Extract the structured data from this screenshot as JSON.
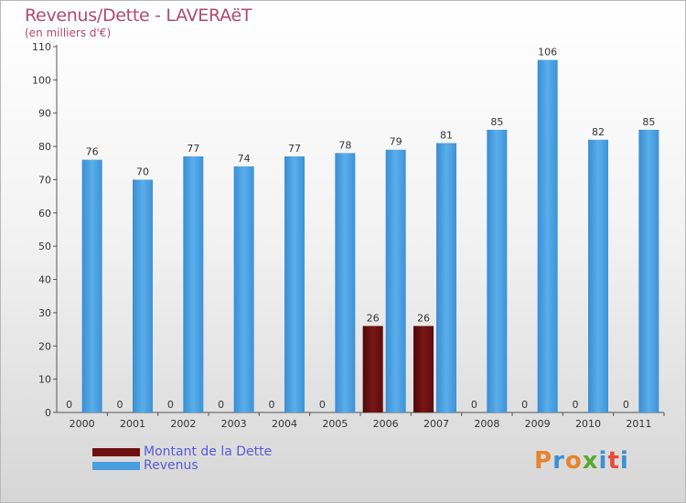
{
  "header": {
    "title": "Revenus/Dette - LAVERAëT",
    "subtitle": "(en milliers d'€)"
  },
  "legend": {
    "items": [
      {
        "label": "Montant de la Dette",
        "color": "#6e1010"
      },
      {
        "label": "Revenus",
        "color": "#4a9ee0"
      }
    ]
  },
  "logo": {
    "text": "Proxiti",
    "colors": [
      "#e8832a",
      "#3c8fd6",
      "#e8832a",
      "#5aa832",
      "#3c8fd6",
      "#e84a3a",
      "#3c8fd6"
    ]
  },
  "chart_data": {
    "type": "bar",
    "title": "Revenus/Dette - LAVERAëT",
    "subtitle": "(en milliers d'€)",
    "categories": [
      "2000",
      "2001",
      "2002",
      "2003",
      "2004",
      "2005",
      "2006",
      "2007",
      "2008",
      "2009",
      "2010",
      "2011"
    ],
    "series": [
      {
        "name": "Montant de la Dette",
        "color": "#6e1010",
        "values": [
          0,
          0,
          0,
          0,
          0,
          0,
          26,
          26,
          0,
          0,
          0,
          0
        ]
      },
      {
        "name": "Revenus",
        "color": "#4a9ee0",
        "values": [
          76,
          70,
          77,
          74,
          77,
          78,
          79,
          81,
          85,
          106,
          82,
          85
        ]
      }
    ],
    "yticks": [
      0,
      10,
      20,
      30,
      40,
      50,
      60,
      70,
      80,
      90,
      100,
      110
    ],
    "ylim": [
      0,
      110
    ],
    "grid": false,
    "legend_position": "bottom-left"
  }
}
